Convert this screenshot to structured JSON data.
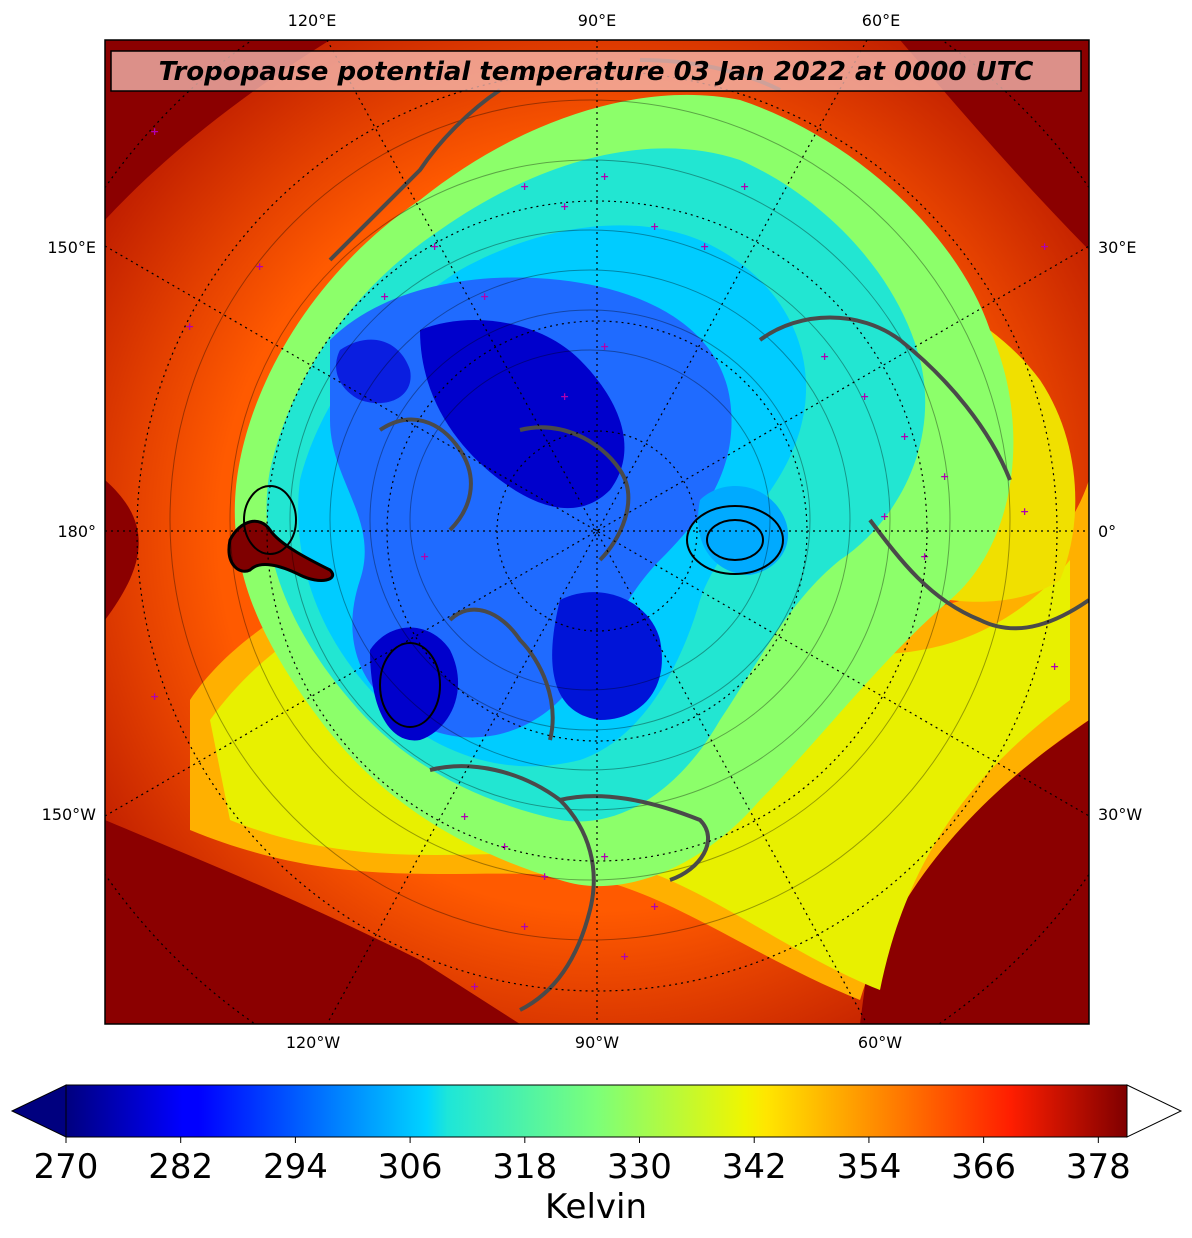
{
  "title": "Tropopause potential temperature 03 Jan 2022 at 0000 UTC",
  "top_lon_labels": [
    "120°E",
    "90°E",
    "60°E"
  ],
  "bottom_lon_labels": [
    "120°W",
    "90°W",
    "60°W"
  ],
  "left_lon_labels": [
    "150°E",
    "180°",
    "150°W"
  ],
  "right_lon_labels": [
    "30°E",
    "0°",
    "30°W"
  ],
  "colorbar": {
    "label": "Kelvin",
    "ticks": [
      "270",
      "282",
      "294",
      "306",
      "318",
      "330",
      "342",
      "354",
      "366",
      "378"
    ],
    "min": 270,
    "max": 381,
    "colormap": "jet",
    "extend": "both"
  },
  "colors": {
    "outer": "#8b0000",
    "warm": "#ff3300",
    "yellow": "#f5f500",
    "green": "#7fff7f",
    "cyan": "#1ae6e6",
    "blue": "#1a6fff",
    "deep_blue": "#0000c8",
    "coastline": "#4a4a4a",
    "stations": "#b000b0"
  }
}
